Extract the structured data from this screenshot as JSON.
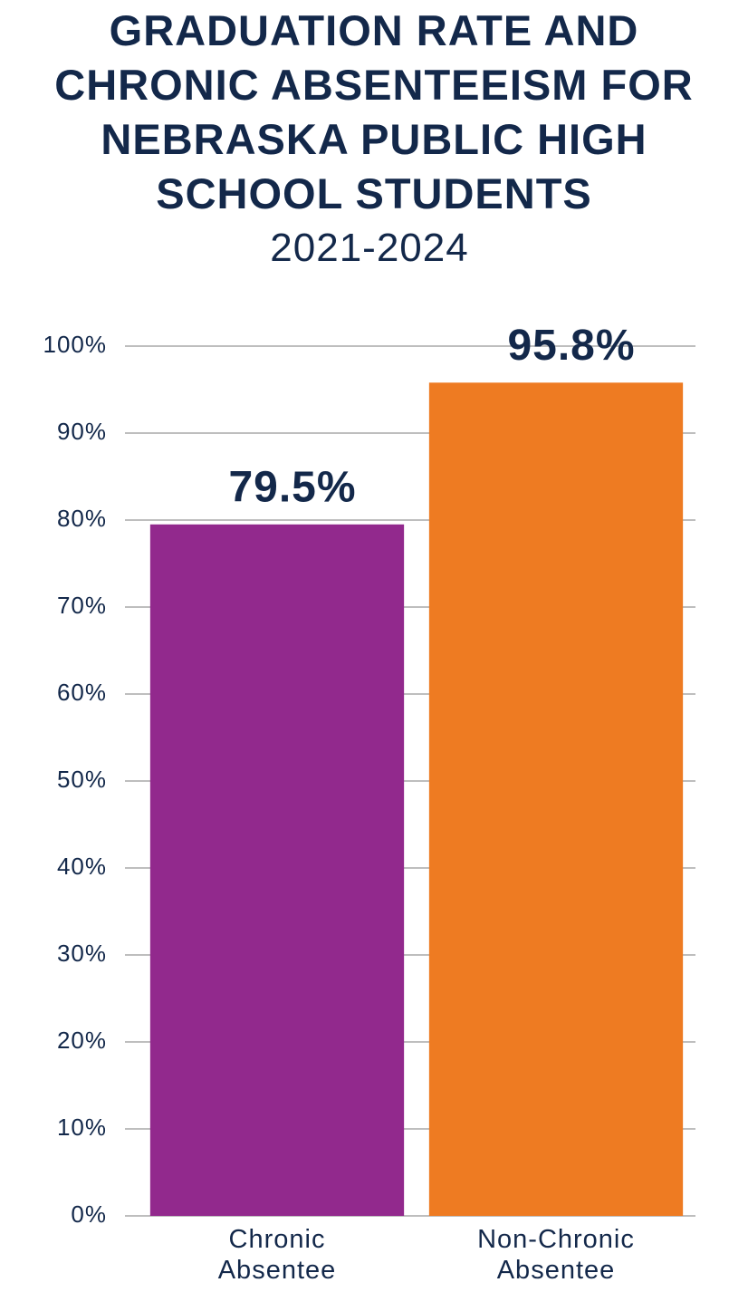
{
  "chart_data": {
    "type": "bar",
    "title": "GRADUATION RATE AND CHRONIC ABSENTEEISM FOR NEBRASKA PUBLIC HIGH SCHOOL STUDENTS",
    "subtitle": "2021-2024",
    "categories": [
      "Chronic Absentee",
      "Non-Chronic Absentee"
    ],
    "values": [
      79.5,
      95.8
    ],
    "value_labels": [
      "79.5%",
      "95.8%"
    ],
    "colors": [
      "#92298d",
      "#ee7b22"
    ],
    "ylim": [
      0,
      100
    ],
    "yticks": [
      {
        "value": 0,
        "label": "0%"
      },
      {
        "value": 10,
        "label": "10%"
      },
      {
        "value": 20,
        "label": "20%"
      },
      {
        "value": 30,
        "label": "30%"
      },
      {
        "value": 40,
        "label": "40%"
      },
      {
        "value": 50,
        "label": "50%"
      },
      {
        "value": 60,
        "label": "60%"
      },
      {
        "value": 70,
        "label": "70%"
      },
      {
        "value": 80,
        "label": "80%"
      },
      {
        "value": 90,
        "label": "90%"
      },
      {
        "value": 100,
        "label": "100%"
      }
    ],
    "grid": true
  }
}
